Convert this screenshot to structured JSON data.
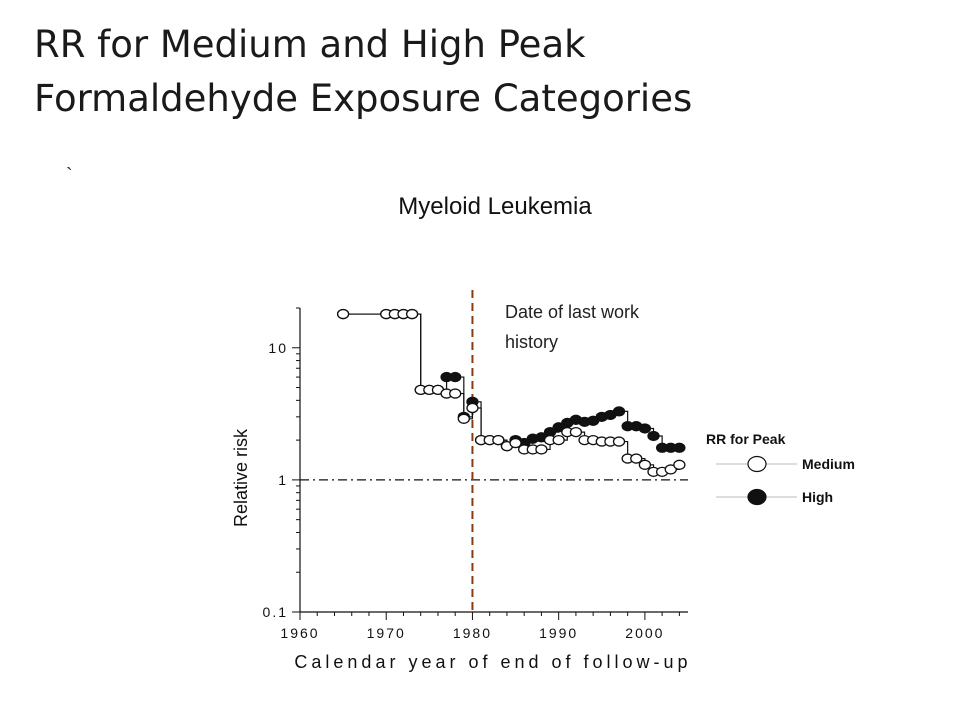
{
  "slide": {
    "title_line1": "RR for Medium and High Peak",
    "title_line2": "Formaldehyde Exposure Categories",
    "stray_mark": "`"
  },
  "chart_data": {
    "type": "line",
    "title": "Myeloid Leukemia",
    "xlabel": "Calendar year of end of follow-up",
    "ylabel": "Relative risk",
    "xlim": [
      1960,
      2005
    ],
    "ylim": [
      0.1,
      20
    ],
    "y_scale": "log",
    "x_ticks": [
      1960,
      1970,
      1980,
      1990,
      2000
    ],
    "y_ticks": [
      {
        "value": 0.1,
        "label": "0.1"
      },
      {
        "value": 1,
        "label": "1"
      },
      {
        "value": 10,
        "label": "10"
      }
    ],
    "reference_line": {
      "y": 1,
      "style": "dash-dot"
    },
    "vertical_marker": {
      "x": 1980,
      "label_line1": "Date of last work",
      "label_line2": "history",
      "color": "#8B3A0F"
    },
    "legend": {
      "title": "RR for Peak",
      "position": "right",
      "entries": [
        {
          "name": "Medium",
          "marker": "open-circle"
        },
        {
          "name": "High",
          "marker": "filled-circle"
        }
      ]
    },
    "series": [
      {
        "name": "Medium",
        "marker": "open-circle",
        "x": [
          1965,
          1970,
          1971,
          1972,
          1973,
          1974,
          1975,
          1976,
          1977,
          1978,
          1979,
          1980,
          1981,
          1982,
          1983,
          1984,
          1985,
          1986,
          1987,
          1988,
          1989,
          1990,
          1991,
          1992,
          1993,
          1994,
          1995,
          1996,
          1997,
          1998,
          1999,
          2000,
          2001,
          2002,
          2003,
          2004
        ],
        "y": [
          18,
          18,
          18,
          18,
          18,
          4.8,
          4.8,
          4.8,
          4.5,
          4.5,
          2.9,
          3.5,
          2.0,
          2.0,
          2.0,
          1.8,
          1.9,
          1.7,
          1.7,
          1.7,
          2.0,
          2.0,
          2.3,
          2.3,
          2.0,
          2.0,
          1.95,
          1.95,
          1.95,
          1.45,
          1.45,
          1.3,
          1.15,
          1.15,
          1.2,
          1.3
        ]
      },
      {
        "name": "High",
        "marker": "filled-circle",
        "x": [
          1965,
          1970,
          1971,
          1972,
          1973,
          1974,
          1975,
          1976,
          1977,
          1978,
          1979,
          1980,
          1981,
          1982,
          1983,
          1984,
          1985,
          1986,
          1987,
          1988,
          1989,
          1990,
          1991,
          1992,
          1993,
          1994,
          1995,
          1996,
          1997,
          1998,
          1999,
          2000,
          2001,
          2002,
          2003,
          2004
        ],
        "y": [
          18,
          18,
          18,
          18,
          18,
          4.8,
          4.8,
          4.8,
          6.0,
          6.0,
          3.0,
          3.9,
          2.0,
          2.0,
          2.0,
          1.8,
          2.0,
          1.9,
          2.05,
          2.1,
          2.3,
          2.5,
          2.7,
          2.85,
          2.75,
          2.8,
          3.0,
          3.1,
          3.3,
          2.55,
          2.55,
          2.45,
          2.15,
          1.75,
          1.75,
          1.75
        ]
      }
    ]
  }
}
